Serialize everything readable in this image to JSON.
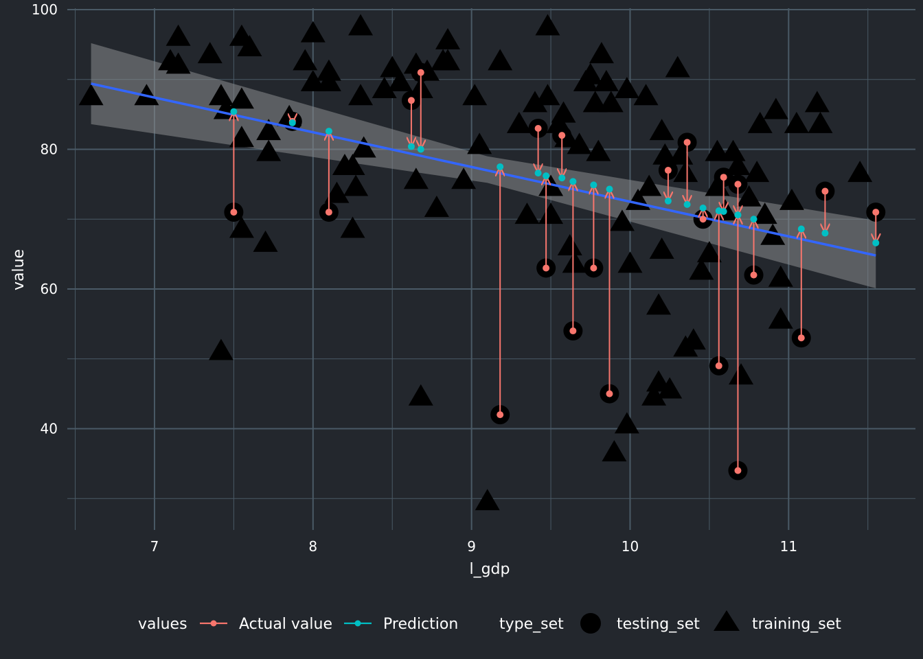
{
  "chart_data": {
    "type": "scatter",
    "xlabel": "l_gdp",
    "ylabel": "value",
    "xlim": [
      6.45,
      11.8
    ],
    "ylim": [
      25.5,
      100.2
    ],
    "x_ticks": [
      7,
      8,
      9,
      10,
      11
    ],
    "y_ticks": [
      40,
      60,
      80,
      100
    ],
    "grid": true,
    "legend_position": "bottom",
    "legend": {
      "values_title": "values",
      "values_items": [
        "Actual value",
        "Prediction"
      ],
      "type_set_title": "type_set",
      "type_set_items": [
        "testing_set",
        "training_set"
      ]
    },
    "colors": {
      "background": "#23272d",
      "grid": "#4a5a66",
      "actual": "#f8766d",
      "prediction": "#00bfc4",
      "fit_line": "#3366ff",
      "ribbon": "#8a8c8e",
      "marker": "#000000"
    },
    "fit_line": {
      "x": [
        6.6,
        11.55
      ],
      "y": [
        89.4,
        64.8
      ]
    },
    "confidence_band": {
      "x": [
        6.6,
        9.1,
        11.55
      ],
      "upper": [
        95.2,
        79.0,
        69.8
      ],
      "lower": [
        83.6,
        75.2,
        60.1
      ]
    },
    "training_set": [
      [
        6.6,
        87.5
      ],
      [
        6.95,
        87.5
      ],
      [
        7.15,
        96
      ],
      [
        7.1,
        92.5
      ],
      [
        7.15,
        92
      ],
      [
        7.35,
        93.5
      ],
      [
        7.45,
        85.5
      ],
      [
        7.42,
        87.5
      ],
      [
        7.55,
        87
      ],
      [
        7.42,
        51
      ],
      [
        7.55,
        96
      ],
      [
        7.6,
        94.5
      ],
      [
        7.55,
        81.5
      ],
      [
        7.72,
        79.5
      ],
      [
        7.72,
        82.5
      ],
      [
        7.55,
        68.5
      ],
      [
        7.7,
        66.5
      ],
      [
        7.85,
        84.5
      ],
      [
        7.95,
        92.5
      ],
      [
        8.0,
        96.5
      ],
      [
        8.0,
        89.5
      ],
      [
        8.1,
        91
      ],
      [
        8.1,
        89.5
      ],
      [
        8.15,
        73.5
      ],
      [
        8.2,
        77.5
      ],
      [
        8.25,
        68.5
      ],
      [
        8.25,
        77.5
      ],
      [
        8.27,
        74.5
      ],
      [
        8.3,
        87.5
      ],
      [
        8.3,
        97.5
      ],
      [
        8.32,
        80
      ],
      [
        8.45,
        88.5
      ],
      [
        8.5,
        91.5
      ],
      [
        8.55,
        89.5
      ],
      [
        8.65,
        92
      ],
      [
        8.68,
        88.5
      ],
      [
        8.72,
        91
      ],
      [
        8.65,
        75.5
      ],
      [
        8.68,
        44.5
      ],
      [
        8.78,
        71.5
      ],
      [
        8.82,
        92.5
      ],
      [
        8.85,
        95.5
      ],
      [
        8.85,
        92.5
      ],
      [
        8.95,
        75.5
      ],
      [
        9.02,
        87.5
      ],
      [
        9.05,
        80.5
      ],
      [
        9.1,
        29.5
      ],
      [
        9.18,
        92.5
      ],
      [
        9.3,
        83.5
      ],
      [
        9.35,
        70.5
      ],
      [
        9.4,
        86.5
      ],
      [
        9.48,
        97.5
      ],
      [
        9.48,
        87.5
      ],
      [
        9.5,
        74.5
      ],
      [
        9.5,
        70.5
      ],
      [
        9.55,
        83.5
      ],
      [
        9.58,
        85
      ],
      [
        9.6,
        81.5
      ],
      [
        9.62,
        66
      ],
      [
        9.65,
        63.5
      ],
      [
        9.68,
        80.5
      ],
      [
        9.72,
        89.5
      ],
      [
        9.75,
        90.5
      ],
      [
        9.78,
        86.5
      ],
      [
        9.8,
        79.5
      ],
      [
        9.82,
        93.5
      ],
      [
        9.85,
        89.5
      ],
      [
        9.88,
        86.5
      ],
      [
        9.9,
        36.5
      ],
      [
        9.95,
        69.5
      ],
      [
        9.98,
        88.5
      ],
      [
        9.98,
        40.5
      ],
      [
        10.0,
        63.5
      ],
      [
        10.05,
        72.5
      ],
      [
        10.1,
        87.5
      ],
      [
        10.12,
        74.5
      ],
      [
        10.15,
        44.5
      ],
      [
        10.18,
        46.5
      ],
      [
        10.18,
        57.5
      ],
      [
        10.2,
        65.5
      ],
      [
        10.2,
        82.5
      ],
      [
        10.22,
        79
      ],
      [
        10.25,
        45.5
      ],
      [
        10.3,
        91.5
      ],
      [
        10.32,
        79
      ],
      [
        10.35,
        76.5
      ],
      [
        10.35,
        51.5
      ],
      [
        10.4,
        52.5
      ],
      [
        10.45,
        62.5
      ],
      [
        10.5,
        65
      ],
      [
        10.55,
        79.5
      ],
      [
        10.55,
        74.5
      ],
      [
        10.6,
        71
      ],
      [
        10.65,
        79.5
      ],
      [
        10.68,
        77.5
      ],
      [
        10.7,
        47.5
      ],
      [
        10.75,
        73
      ],
      [
        10.8,
        76.5
      ],
      [
        10.82,
        83.5
      ],
      [
        10.85,
        70.5
      ],
      [
        10.9,
        67.5
      ],
      [
        10.92,
        85.5
      ],
      [
        10.95,
        61.5
      ],
      [
        10.95,
        55.5
      ],
      [
        11.02,
        72.5
      ],
      [
        11.05,
        83.5
      ],
      [
        11.18,
        86.5
      ],
      [
        11.2,
        83.5
      ],
      [
        11.45,
        76.5
      ]
    ],
    "testing_set": [
      {
        "x": 7.5,
        "actual": 71,
        "prediction": 85.4
      },
      {
        "x": 7.87,
        "actual": 84,
        "prediction": 83.8
      },
      {
        "x": 8.1,
        "actual": 71,
        "prediction": 82.6
      },
      {
        "x": 8.62,
        "actual": 87,
        "prediction": 80.4
      },
      {
        "x": 8.68,
        "actual": 91,
        "prediction": 80.0
      },
      {
        "x": 9.18,
        "actual": 42,
        "prediction": 77.5
      },
      {
        "x": 9.42,
        "actual": 83,
        "prediction": 76.6
      },
      {
        "x": 9.47,
        "actual": 63,
        "prediction": 76.2
      },
      {
        "x": 9.57,
        "actual": 82,
        "prediction": 75.9
      },
      {
        "x": 9.64,
        "actual": 54,
        "prediction": 75.4
      },
      {
        "x": 9.77,
        "actual": 63,
        "prediction": 74.9
      },
      {
        "x": 9.87,
        "actual": 45,
        "prediction": 74.3
      },
      {
        "x": 10.24,
        "actual": 77,
        "prediction": 72.6
      },
      {
        "x": 10.36,
        "actual": 81,
        "prediction": 72.1
      },
      {
        "x": 10.46,
        "actual": 70,
        "prediction": 71.6
      },
      {
        "x": 10.56,
        "actual": 49,
        "prediction": 71.2
      },
      {
        "x": 10.59,
        "actual": 76,
        "prediction": 71.1
      },
      {
        "x": 10.68,
        "actual": 75,
        "prediction": 70.6
      },
      {
        "x": 10.68,
        "actual": 34,
        "prediction": 70.6
      },
      {
        "x": 10.78,
        "actual": 62,
        "prediction": 70.0
      },
      {
        "x": 11.08,
        "actual": 53,
        "prediction": 68.6
      },
      {
        "x": 11.23,
        "actual": 74,
        "prediction": 68.0
      },
      {
        "x": 11.55,
        "actual": 71,
        "prediction": 66.6
      }
    ]
  }
}
